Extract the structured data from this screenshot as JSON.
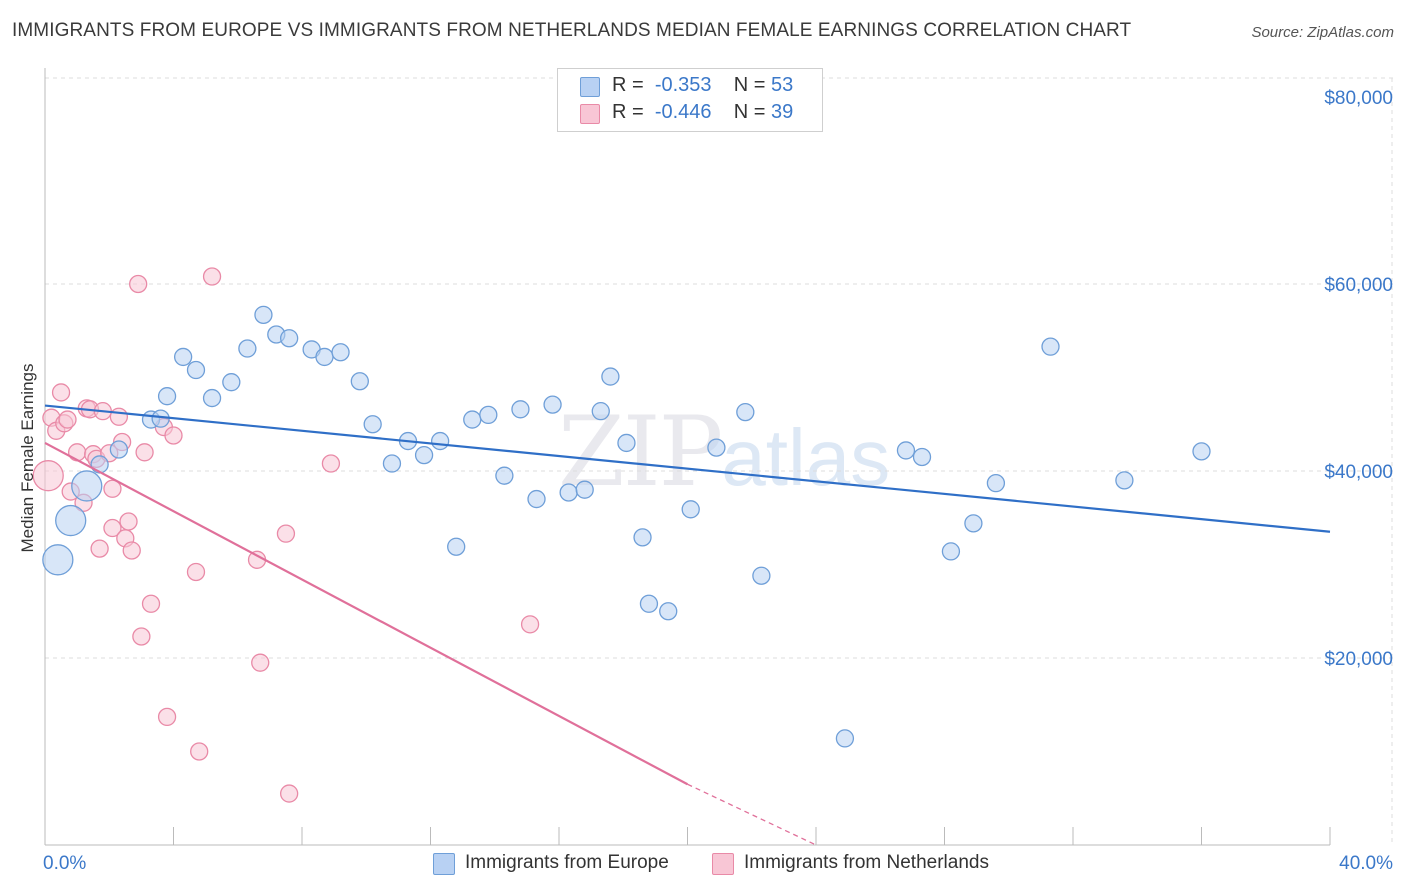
{
  "header": {
    "title": "IMMIGRANTS FROM EUROPE VS IMMIGRANTS FROM NETHERLANDS MEDIAN FEMALE EARNINGS CORRELATION CHART",
    "source": "Source: ZipAtlas.com"
  },
  "watermark": {
    "zip": "ZIP",
    "atlas": "atlas"
  },
  "legend": {
    "europe": {
      "r_label": "R =",
      "r_value": "-0.353",
      "n_label": "N =",
      "n_value": "53"
    },
    "netherlands": {
      "r_label": "R =",
      "r_value": "-0.446",
      "n_label": "N =",
      "n_value": "39"
    }
  },
  "colors": {
    "europe_fill": "#b8d1f3",
    "europe_stroke": "#6f9fd8",
    "europe_line": "#2f6fc7",
    "netherlands_fill": "#f8c6d5",
    "netherlands_stroke": "#e98aa7",
    "netherlands_line": "#e0709a",
    "axis_label": "#3b78c9",
    "grid": "#dddddd"
  },
  "chart_data": {
    "type": "scatter",
    "title": "IMMIGRANTS FROM EUROPE VS IMMIGRANTS FROM NETHERLANDS MEDIAN FEMALE EARNINGS CORRELATION CHART",
    "xlabel": "",
    "ylabel": "Median Female Earnings",
    "xlim": [
      0,
      40
    ],
    "ylim": [
      0,
      80000
    ],
    "x_tick_labels": [
      "0.0%",
      "40.0%"
    ],
    "y_ticks": [
      20000,
      40000,
      60000,
      80000
    ],
    "y_tick_labels": [
      "$20,000",
      "$40,000",
      "$60,000",
      "$80,000"
    ],
    "grid": true,
    "legend_position": "top-center",
    "series": [
      {
        "name": "Immigrants from Europe",
        "r": -0.353,
        "n": 53,
        "trend": {
          "x": [
            0.0,
            40.0
          ],
          "y": [
            47000,
            33500
          ]
        },
        "points": [
          {
            "x": 0.4,
            "y": 30500,
            "big": true
          },
          {
            "x": 0.8,
            "y": 34700,
            "big": true
          },
          {
            "x": 1.3,
            "y": 38400,
            "big": true
          },
          {
            "x": 1.7,
            "y": 40700
          },
          {
            "x": 2.3,
            "y": 42300
          },
          {
            "x": 3.3,
            "y": 45500
          },
          {
            "x": 3.6,
            "y": 45600
          },
          {
            "x": 3.8,
            "y": 48000
          },
          {
            "x": 4.3,
            "y": 52200
          },
          {
            "x": 4.7,
            "y": 50800
          },
          {
            "x": 5.2,
            "y": 47800
          },
          {
            "x": 5.8,
            "y": 49500
          },
          {
            "x": 6.3,
            "y": 53100
          },
          {
            "x": 6.8,
            "y": 56700
          },
          {
            "x": 7.2,
            "y": 54600
          },
          {
            "x": 7.6,
            "y": 54200
          },
          {
            "x": 8.3,
            "y": 53000
          },
          {
            "x": 8.7,
            "y": 52200
          },
          {
            "x": 9.2,
            "y": 52700
          },
          {
            "x": 9.8,
            "y": 49600
          },
          {
            "x": 10.2,
            "y": 45000
          },
          {
            "x": 10.8,
            "y": 40800
          },
          {
            "x": 11.3,
            "y": 43200
          },
          {
            "x": 11.8,
            "y": 41700
          },
          {
            "x": 12.3,
            "y": 43200
          },
          {
            "x": 12.8,
            "y": 31900
          },
          {
            "x": 13.3,
            "y": 45500
          },
          {
            "x": 13.8,
            "y": 46000
          },
          {
            "x": 14.3,
            "y": 39500
          },
          {
            "x": 14.8,
            "y": 46600
          },
          {
            "x": 15.3,
            "y": 37000
          },
          {
            "x": 15.8,
            "y": 47100
          },
          {
            "x": 16.3,
            "y": 37700
          },
          {
            "x": 16.8,
            "y": 38000
          },
          {
            "x": 17.3,
            "y": 46400
          },
          {
            "x": 17.6,
            "y": 50100
          },
          {
            "x": 18.1,
            "y": 43000
          },
          {
            "x": 18.6,
            "y": 32900
          },
          {
            "x": 18.8,
            "y": 25800
          },
          {
            "x": 19.4,
            "y": 25000
          },
          {
            "x": 20.1,
            "y": 35900
          },
          {
            "x": 20.9,
            "y": 42500
          },
          {
            "x": 21.8,
            "y": 46300
          },
          {
            "x": 22.3,
            "y": 28800
          },
          {
            "x": 24.9,
            "y": 11400
          },
          {
            "x": 26.8,
            "y": 42200
          },
          {
            "x": 27.3,
            "y": 41500
          },
          {
            "x": 28.2,
            "y": 31400
          },
          {
            "x": 28.9,
            "y": 34400
          },
          {
            "x": 29.6,
            "y": 38700
          },
          {
            "x": 31.3,
            "y": 53300
          },
          {
            "x": 33.6,
            "y": 39000
          },
          {
            "x": 36.0,
            "y": 42100
          }
        ]
      },
      {
        "name": "Immigrants from Netherlands",
        "r": -0.446,
        "n": 39,
        "trend": {
          "x": [
            0.0,
            20.0
          ],
          "y": [
            43000,
            6500
          ]
        },
        "trend_dashed": {
          "x": [
            20.0,
            24.0
          ],
          "y": [
            6500,
            -800
          ]
        },
        "points": [
          {
            "x": 0.1,
            "y": 39500,
            "big": true
          },
          {
            "x": 0.2,
            "y": 45700
          },
          {
            "x": 0.35,
            "y": 44300
          },
          {
            "x": 0.5,
            "y": 48400
          },
          {
            "x": 0.6,
            "y": 45100
          },
          {
            "x": 0.7,
            "y": 45500
          },
          {
            "x": 0.8,
            "y": 37800
          },
          {
            "x": 1.0,
            "y": 42000
          },
          {
            "x": 1.2,
            "y": 36600
          },
          {
            "x": 1.3,
            "y": 46700
          },
          {
            "x": 1.4,
            "y": 46600
          },
          {
            "x": 1.5,
            "y": 41800
          },
          {
            "x": 1.6,
            "y": 41300
          },
          {
            "x": 1.7,
            "y": 31700
          },
          {
            "x": 1.8,
            "y": 46400
          },
          {
            "x": 2.0,
            "y": 41900
          },
          {
            "x": 2.1,
            "y": 38100
          },
          {
            "x": 2.1,
            "y": 33900
          },
          {
            "x": 2.3,
            "y": 45800
          },
          {
            "x": 2.4,
            "y": 43100
          },
          {
            "x": 2.5,
            "y": 32800
          },
          {
            "x": 2.6,
            "y": 34600
          },
          {
            "x": 2.7,
            "y": 31500
          },
          {
            "x": 2.9,
            "y": 60000
          },
          {
            "x": 3.0,
            "y": 22300
          },
          {
            "x": 3.1,
            "y": 42000
          },
          {
            "x": 3.3,
            "y": 25800
          },
          {
            "x": 3.7,
            "y": 44700
          },
          {
            "x": 3.8,
            "y": 13700
          },
          {
            "x": 4.0,
            "y": 43800
          },
          {
            "x": 4.7,
            "y": 29200
          },
          {
            "x": 4.8,
            "y": 10000
          },
          {
            "x": 5.2,
            "y": 60800
          },
          {
            "x": 6.6,
            "y": 30500
          },
          {
            "x": 6.7,
            "y": 19500
          },
          {
            "x": 7.5,
            "y": 33300
          },
          {
            "x": 7.6,
            "y": 5500
          },
          {
            "x": 8.9,
            "y": 40800
          },
          {
            "x": 15.1,
            "y": 23600
          }
        ]
      }
    ]
  }
}
